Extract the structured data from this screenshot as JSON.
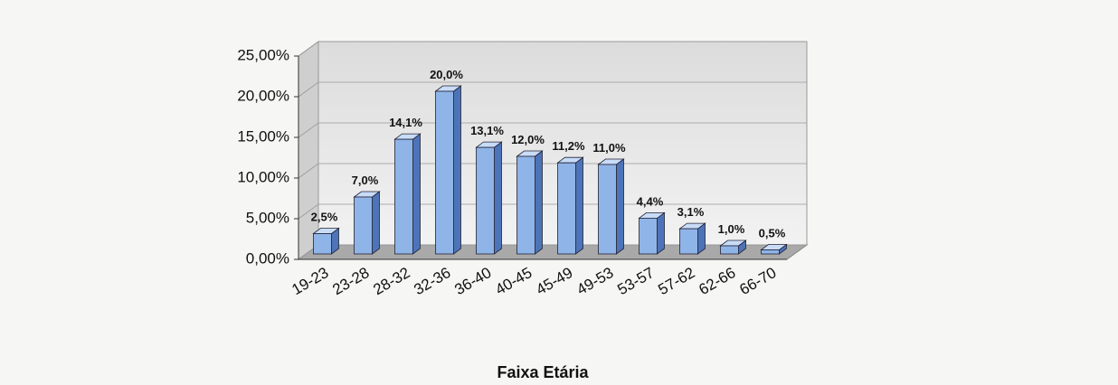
{
  "chart_data": {
    "type": "bar",
    "x_label": "Faixa Etária",
    "categories": [
      "19-23",
      "23-28",
      "28-32",
      "32-36",
      "36-40",
      "40-45",
      "45-49",
      "49-53",
      "53-57",
      "57-62",
      "62-66",
      "66-70"
    ],
    "values": [
      2.5,
      7.0,
      14.1,
      20.0,
      13.1,
      12.0,
      11.2,
      11.0,
      4.4,
      3.1,
      1.0,
      0.5
    ],
    "value_labels": [
      "2,5%",
      "7,0%",
      "14,1%",
      "20,0%",
      "13,1%",
      "12,0%",
      "11,2%",
      "11,0%",
      "4,4%",
      "3,1%",
      "1,0%",
      "0,5%"
    ],
    "color": "#8fb4e8",
    "ylim": [
      0,
      25
    ],
    "yticks": [
      {
        "value": 0,
        "label": "0,00%"
      },
      {
        "value": 5,
        "label": "5,00%"
      },
      {
        "value": 10,
        "label": "10,00%"
      },
      {
        "value": 15,
        "label": "15,00%"
      },
      {
        "value": 20,
        "label": "20,00%"
      },
      {
        "value": 25,
        "label": "25,00%"
      }
    ],
    "grid": true
  }
}
